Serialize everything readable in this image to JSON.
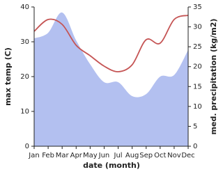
{
  "chart_data": {
    "type": "line",
    "categories": [
      "Jan",
      "Feb",
      "Mar",
      "Apr",
      "May",
      "Jun",
      "Jul",
      "Aug",
      "Sep",
      "Oct",
      "Nov",
      "Dec"
    ],
    "xlabel": "date (month)",
    "ylabel": "max temp (C)",
    "y2label": "med. precipitation (kg/m2)",
    "series": [
      {
        "color": "#b3c0f0",
        "fill": true,
        "axis": "y2",
        "values": [
          27.1,
          28.5,
          33.6,
          26.6,
          20.6,
          16.1,
          16.1,
          12.6,
          13.1,
          17.5,
          17.9,
          24.2
        ]
      },
      {
        "color": "#c55454",
        "values": [
          33,
          36.4,
          35,
          29,
          26,
          23,
          21.4,
          23.4,
          30.6,
          29.6,
          36.4,
          37.6
        ]
      }
    ],
    "ylim": [
      0,
      40
    ],
    "yticks": [
      0,
      10,
      20,
      30,
      40
    ],
    "y2lim": [
      0,
      35
    ],
    "y2ticks": [
      0,
      5,
      10,
      15,
      20,
      25,
      30,
      35
    ]
  }
}
